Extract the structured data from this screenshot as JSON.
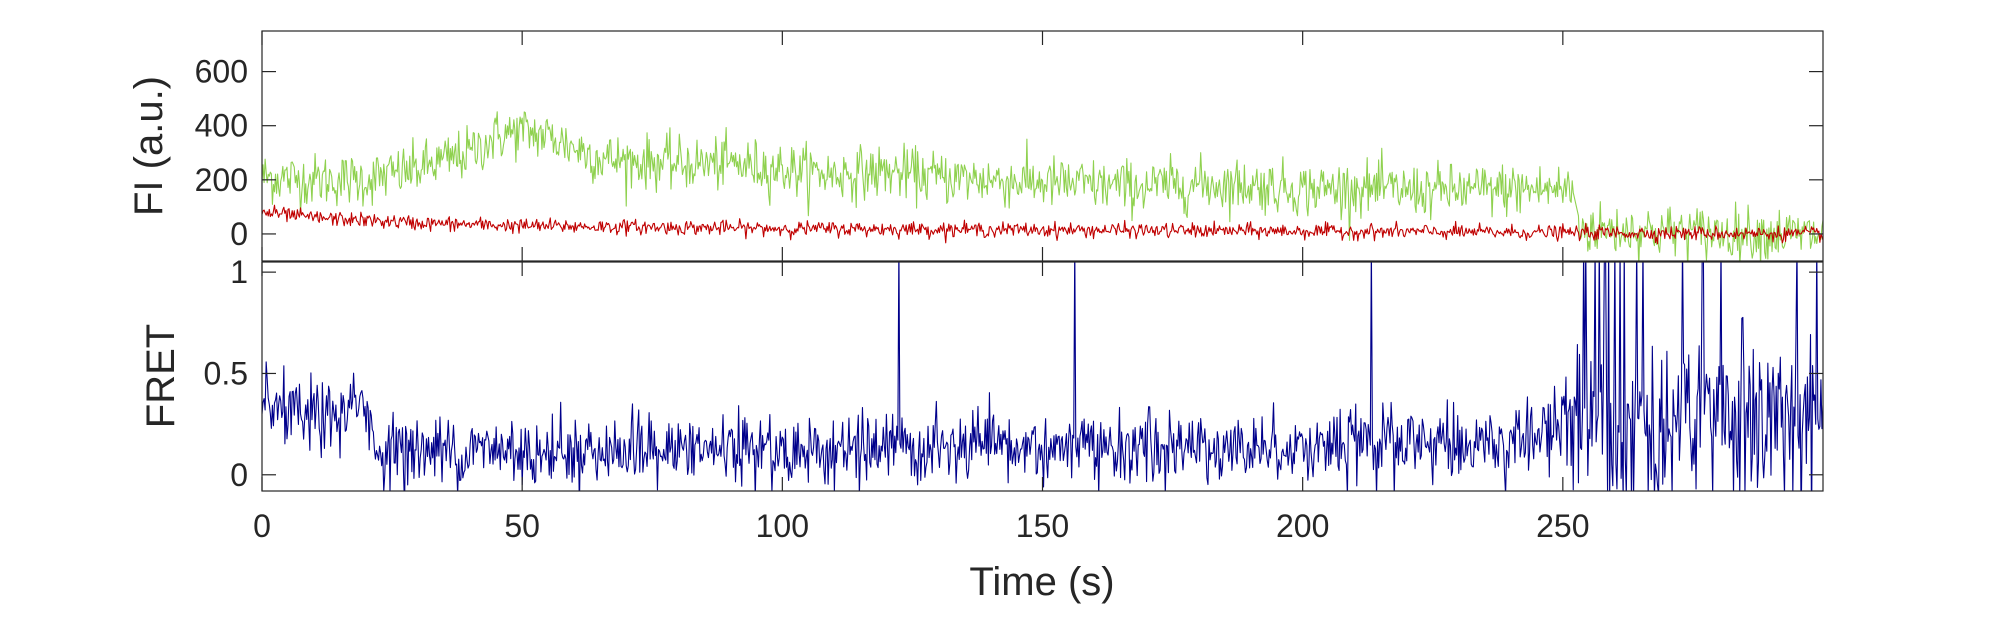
{
  "chart_data": [
    {
      "type": "line",
      "panel": "top",
      "ylabel": "FI (a.u.)",
      "xlim": [
        0,
        300
      ],
      "ylim": [
        -100,
        750
      ],
      "yticks": [
        0,
        200,
        400,
        600
      ],
      "grid": false,
      "xtick_labels_shown": false,
      "series": [
        {
          "color": "#8fd14f",
          "segments": [
            {
              "x": [
                0,
                10,
                20,
                30,
                40,
                45,
                50,
                55,
                60,
                65,
                70,
                80,
                90,
                100,
                110,
                120,
                130,
                140,
                150,
                160,
                170,
                180,
                190,
                200,
                210,
                220,
                230,
                240,
                252
              ],
              "y": [
                210,
                200,
                200,
                240,
                300,
                360,
                380,
                360,
                320,
                280,
                270,
                260,
                260,
                240,
                220,
                230,
                210,
                200,
                190,
                180,
                175,
                185,
                180,
                165,
                170,
                160,
                160,
                165,
                165
              ]
            },
            {
              "x": [
                253,
                260,
                270,
                280,
                290,
                300
              ],
              "y": [
                20,
                15,
                10,
                5,
                0,
                -5
              ]
            }
          ],
          "noise": 80
        },
        {
          "color": "#c00000",
          "segments": [
            {
              "x": [
                0,
                5,
                10,
                15,
                20,
                25,
                30,
                50,
                100,
                150,
                200,
                250,
                300
              ],
              "y": [
                80,
                70,
                60,
                55,
                50,
                45,
                40,
                30,
                20,
                15,
                10,
                5,
                0
              ]
            }
          ],
          "noise": 22
        }
      ]
    },
    {
      "type": "line",
      "panel": "bottom",
      "xlabel": "Time (s)",
      "ylabel": "FRET",
      "xlim": [
        0,
        300
      ],
      "ylim": [
        -0.08,
        1.05
      ],
      "xticks": [
        0,
        50,
        100,
        150,
        200,
        250
      ],
      "yticks": [
        0,
        0.5,
        1
      ],
      "ytick_labels": [
        "0",
        "0.5",
        "1"
      ],
      "grid": false,
      "series": [
        {
          "color": "#00008b",
          "segments": [
            {
              "x": [
                0,
                5,
                10,
                15,
                20,
                22,
                30,
                50,
                100,
                150,
                200,
                240,
                255,
                300
              ],
              "y": [
                0.32,
                0.3,
                0.28,
                0.3,
                0.35,
                0.12,
                0.12,
                0.12,
                0.12,
                0.13,
                0.14,
                0.16,
                0.3,
                0.3
              ]
            }
          ],
          "noise_low": 0.12,
          "noise_high": 0.3
        }
      ]
    }
  ]
}
